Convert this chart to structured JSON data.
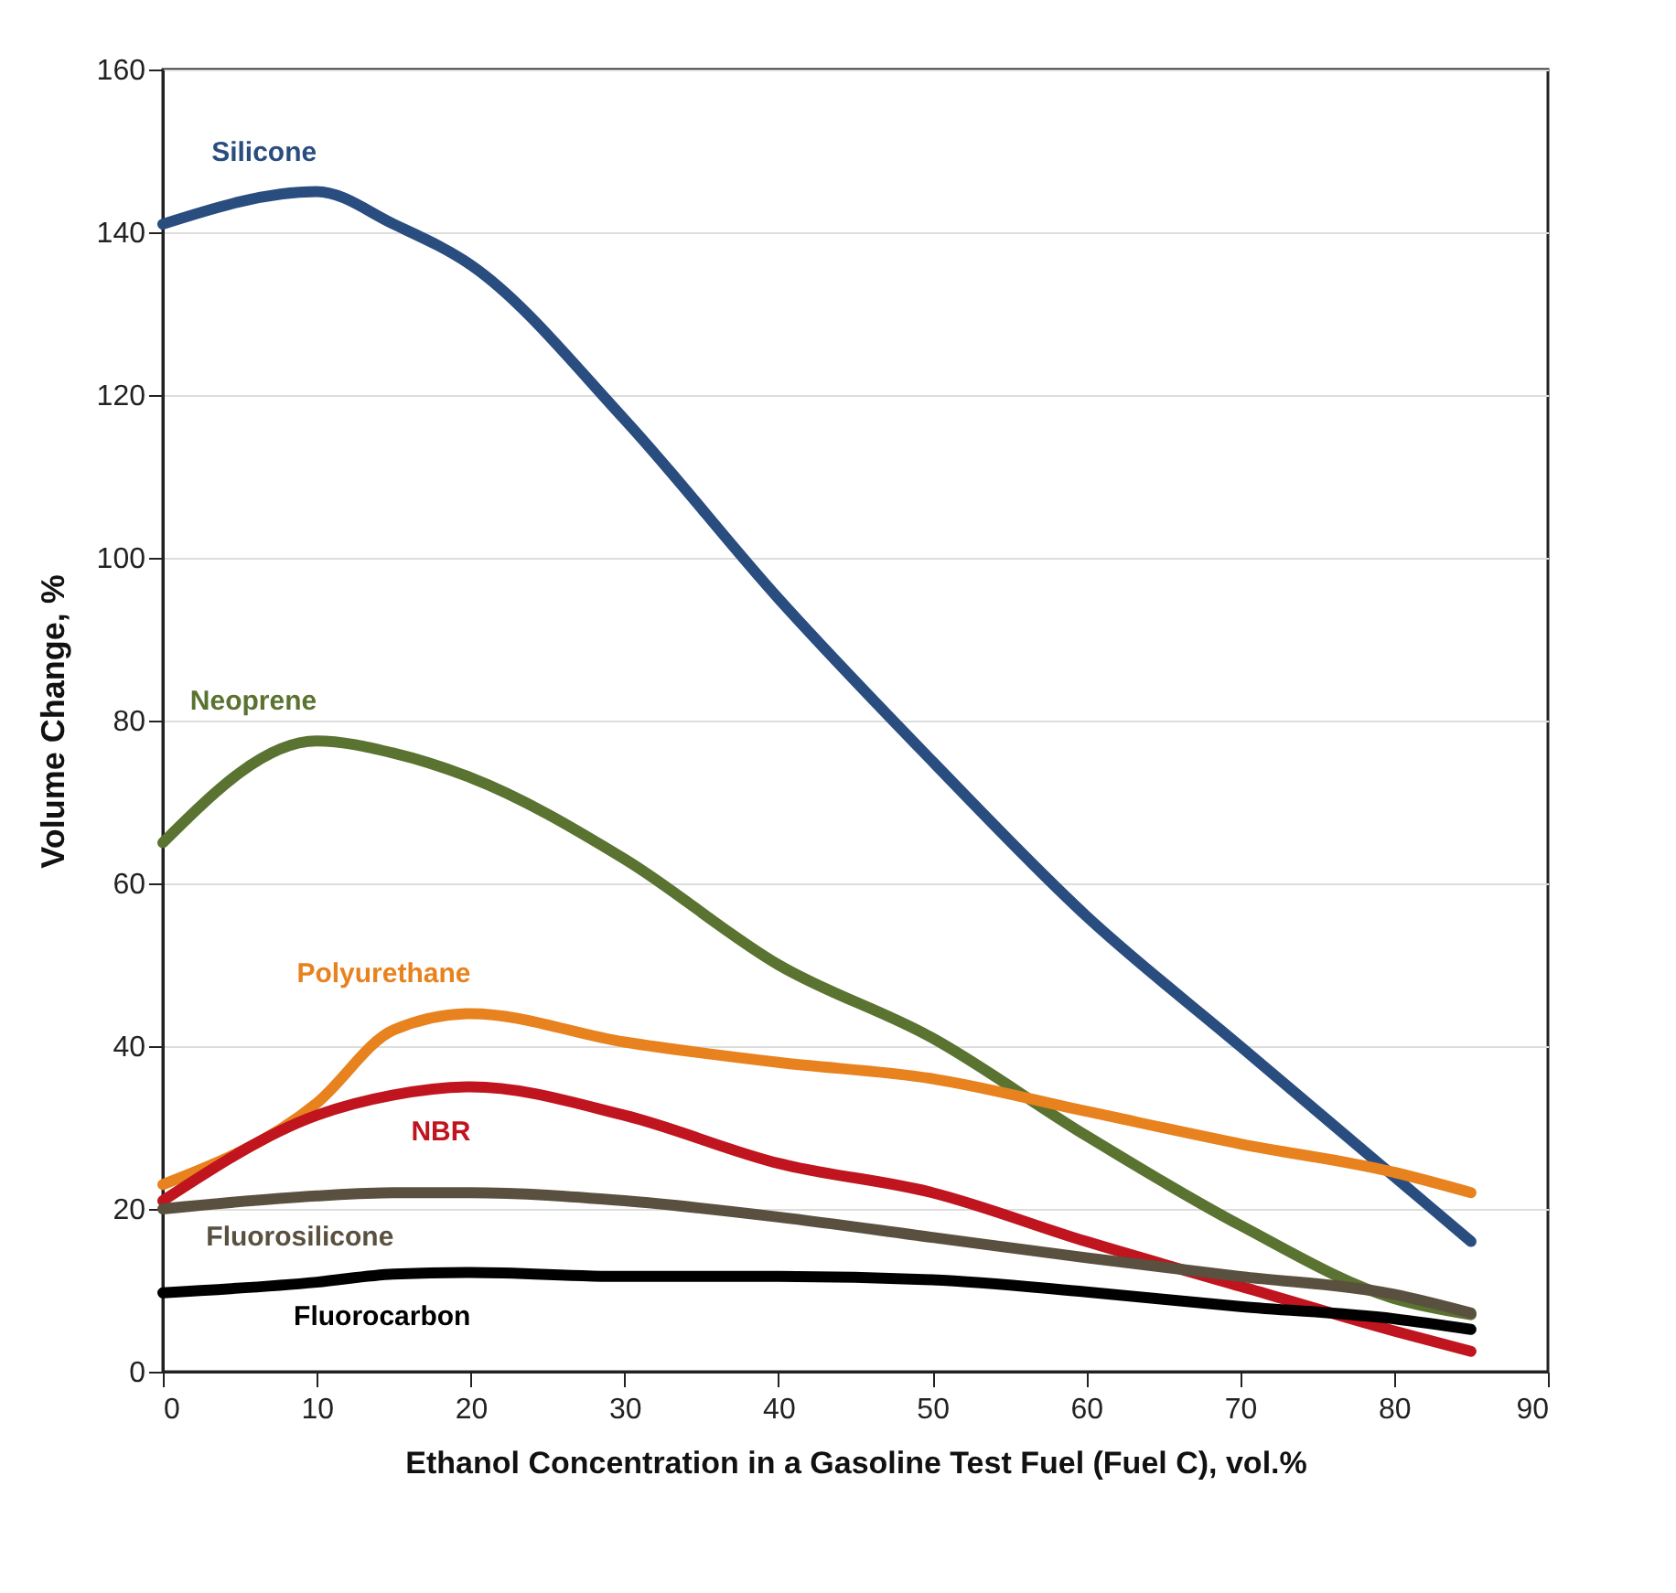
{
  "chart_data": {
    "type": "line",
    "xlabel": "Ethanol Concentration in a Gasoline Test Fuel (Fuel C), vol.%",
    "ylabel": "Volume Change, %",
    "xlim": [
      0,
      90
    ],
    "xticks": [
      0,
      10,
      20,
      30,
      40,
      50,
      60,
      70,
      80,
      90
    ],
    "ylim": [
      0,
      160
    ],
    "yticks": [
      0,
      20,
      40,
      60,
      80,
      100,
      120,
      140,
      160
    ],
    "grid": "y",
    "legend": false,
    "marker": "none",
    "line_style": "solid",
    "x": [
      0,
      10,
      15,
      20,
      30,
      40,
      50,
      60,
      70,
      80,
      85
    ],
    "series": [
      {
        "name": "Silicone",
        "color": "#2a4d80",
        "values": [
          141,
          145,
          141,
          136,
          117,
          95,
          75,
          56,
          40,
          24,
          16
        ]
      },
      {
        "name": "Neoprene",
        "color": "#5a7330",
        "values": [
          65,
          77.5,
          76,
          73,
          63,
          50,
          41,
          29,
          18,
          9,
          7
        ]
      },
      {
        "name": "Polyurethane",
        "color": "#e8821e",
        "values": [
          23,
          33,
          42,
          44,
          40.5,
          38,
          36,
          32,
          28,
          24.5,
          22
        ]
      },
      {
        "name": "NBR",
        "color": "#c0141e",
        "values": [
          21,
          31.5,
          34,
          35,
          31.5,
          25.6,
          22,
          16,
          10.5,
          5,
          2.5
        ]
      },
      {
        "name": "Fluorosilicone",
        "color": "#5a5040",
        "values": [
          20,
          21.6,
          22,
          22,
          21,
          19,
          16.5,
          14,
          11.7,
          9.5,
          7.2
        ]
      },
      {
        "name": "Fluorocarbon",
        "color": "#000000",
        "values": [
          9.7,
          11,
          12,
          12.2,
          11.7,
          11.7,
          11.3,
          9.8,
          8,
          6.5,
          5.2
        ]
      }
    ]
  }
}
